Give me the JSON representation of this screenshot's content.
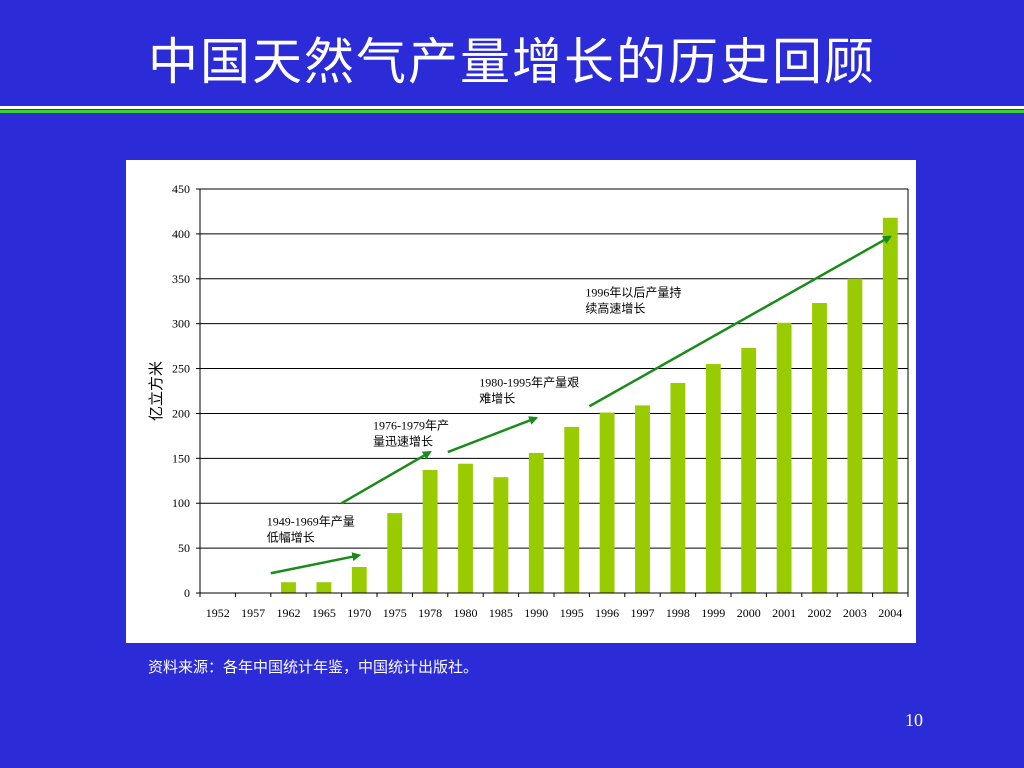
{
  "slide": {
    "title": "中国天然气产量增长的历史回顾",
    "source": "资料来源：各年中国统计年鉴，中国统计出版社。",
    "page_number": "10"
  },
  "colors": {
    "background": "#2b2bd8",
    "bar": "#99cc00",
    "arrow": "#1a8c1a",
    "rule_green": "#38d238"
  },
  "chart_data": {
    "type": "bar",
    "ylabel": "亿立方米",
    "xlabel": "",
    "ylim": [
      0,
      450
    ],
    "yticks": [
      0,
      50,
      100,
      150,
      200,
      250,
      300,
      350,
      400,
      450
    ],
    "grid": "horizontal",
    "categories": [
      "1952",
      "1957",
      "1962",
      "1965",
      "1970",
      "1975",
      "1978",
      "1980",
      "1985",
      "1990",
      "1995",
      "1996",
      "1997",
      "1998",
      "1999",
      "2000",
      "2001",
      "2002",
      "2003",
      "2004"
    ],
    "values": [
      0,
      0,
      12,
      12,
      29,
      89,
      137,
      144,
      129,
      156,
      185,
      201,
      209,
      234,
      255,
      273,
      301,
      323,
      350,
      418
    ],
    "annotations": [
      {
        "lines": [
          "1949-1969年产量",
          "低幅增长"
        ],
        "anchor_category": "1962",
        "anchor_value": 75,
        "arrow": {
          "from": [
            "1962",
            22
          ],
          "to": [
            "1970",
            42
          ]
        }
      },
      {
        "lines": [
          "1976-1979年产",
          "量迅速增长"
        ],
        "anchor_category": "1975",
        "anchor_value": 182,
        "arrow": {
          "from": [
            "1970",
            100
          ],
          "to": [
            "1978",
            157
          ]
        }
      },
      {
        "lines": [
          "1980-1995年产量艰",
          "难增长"
        ],
        "anchor_category": "1985",
        "anchor_value": 230,
        "arrow": {
          "from": [
            "1980",
            157
          ],
          "to": [
            "1990",
            195
          ]
        }
      },
      {
        "lines": [
          "1996年以后产量持",
          "续高速增长"
        ],
        "anchor_category": "1996",
        "anchor_value": 330,
        "arrow": {
          "from": [
            "1996",
            208
          ],
          "to": [
            "2004",
            397
          ]
        }
      }
    ]
  }
}
